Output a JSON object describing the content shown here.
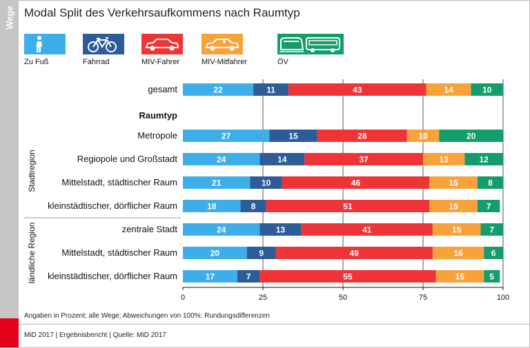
{
  "side_label": "Wege",
  "title": "Modal Split des Verkehrsaufkommens nach Raumtyp",
  "legend": [
    {
      "key": "fuss",
      "label": "Zu Fuß",
      "color": "#3daee9",
      "icon": "pedestrian-icon"
    },
    {
      "key": "rad",
      "label": "Fahrrad",
      "color": "#2e5c99",
      "icon": "bicycle-icon"
    },
    {
      "key": "fahrer",
      "label": "MIV-Fahrer",
      "color": "#ee3436",
      "icon": "car-icon"
    },
    {
      "key": "mitfahrer",
      "label": "MIV-Mitfahrer",
      "color": "#f9a23b",
      "icon": "car-passenger-icon"
    },
    {
      "key": "ov",
      "label": "ÖV",
      "color": "#149d6b",
      "icon": "train-bus-icon"
    }
  ],
  "chart_data": {
    "type": "bar",
    "orientation": "horizontal",
    "stacked": true,
    "categories": [
      "gesamt",
      "Metropole",
      "Regiopole und Großstadt",
      "Mittelstadt, städtischer Raum",
      "kleinstädtischer, dörflicher Raum",
      "zentrale Stadt",
      "Mittelstadt, städtischer Raum",
      "kleinstädtischer, dörflicher Raum"
    ],
    "section_heading": "Raumtyp",
    "groups": [
      {
        "label": "Stadtregion",
        "rows": [
          1,
          2,
          3,
          4
        ]
      },
      {
        "label": "ländliche Region",
        "rows": [
          5,
          6,
          7
        ]
      }
    ],
    "series": [
      {
        "name": "Zu Fuß",
        "values": [
          22,
          27,
          24,
          21,
          18,
          24,
          20,
          17
        ]
      },
      {
        "name": "Fahrrad",
        "values": [
          11,
          15,
          14,
          10,
          8,
          13,
          9,
          7
        ]
      },
      {
        "name": "MIV-Fahrer",
        "values": [
          43,
          28,
          37,
          46,
          51,
          41,
          49,
          55
        ]
      },
      {
        "name": "MIV-Mitfahrer",
        "values": [
          14,
          10,
          13,
          15,
          15,
          15,
          16,
          15
        ]
      },
      {
        "name": "ÖV",
        "values": [
          10,
          20,
          12,
          8,
          7,
          7,
          6,
          5
        ]
      }
    ],
    "xlim": [
      0,
      100
    ],
    "xticks": [
      0,
      25,
      50,
      75,
      100
    ],
    "grid": true
  },
  "footnote": "Angaben in Prozent; alle Wege; Abweichungen von 100%: Rundungsdifferenzen",
  "footer": "MiD 2017  |  Ergebnisbericht  |  Quelle: MiD 2017"
}
